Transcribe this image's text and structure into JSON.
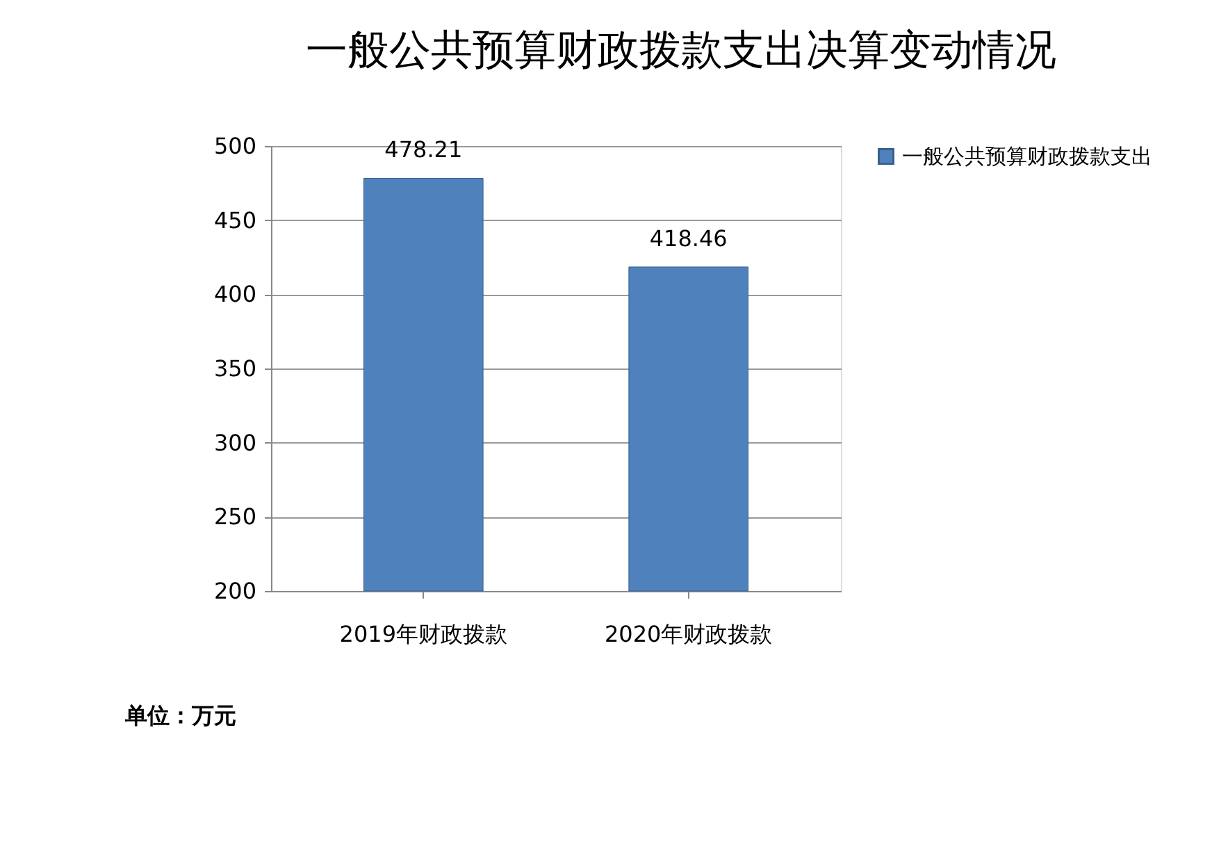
{
  "chart_data": {
    "type": "bar",
    "title": "一般公共预算财政拨款支出决算变动情况",
    "categories": [
      "2019年财政拨款",
      "2020年财政拨款"
    ],
    "series": [
      {
        "name": "一般公共预算财政拨款支出",
        "color": "#4f81bd",
        "values": [
          478.21,
          418.46
        ]
      }
    ],
    "ylim": [
      200,
      500
    ],
    "yticks": [
      200,
      250,
      300,
      350,
      400,
      450,
      500
    ],
    "grid": "y",
    "legend": "right",
    "data_labels": true,
    "annotations": [
      "单位：万元"
    ]
  }
}
